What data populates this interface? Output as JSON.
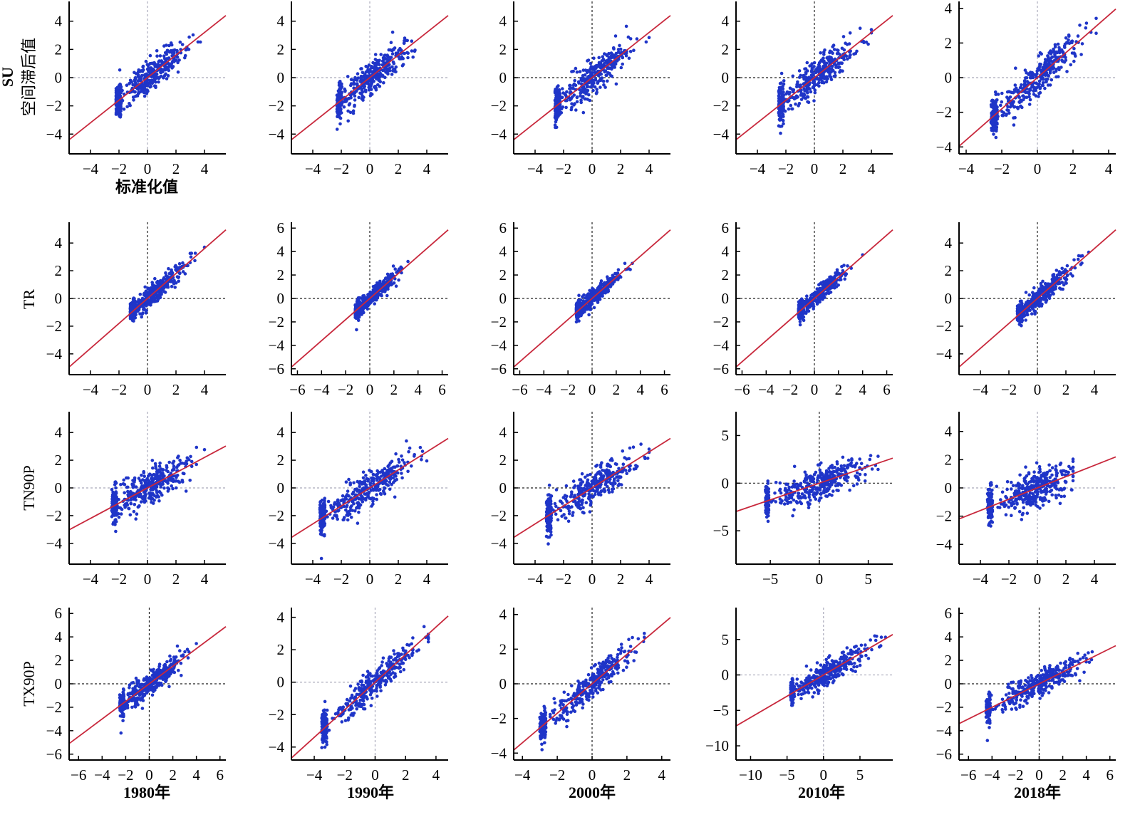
{
  "chart_data": {
    "type": "scatter",
    "title": "",
    "point_color": "#1f35c8",
    "line_color": "#c8283c",
    "row_labels": [
      "SU",
      "TR",
      "TN90P",
      "TX90P"
    ],
    "ylabel_extra": "空间滞后值",
    "xlabel_first": "标准化值",
    "years": [
      "1980年",
      "1990年",
      "2000年",
      "2010年",
      "2018年"
    ],
    "panels": [
      {
        "row": 0,
        "col": 0,
        "xlim": [
          -5.5,
          5.5
        ],
        "ylim": [
          -5.4,
          5.4
        ],
        "xticks": [
          -4,
          -2,
          0,
          2,
          4
        ],
        "yticks": [
          -4,
          -2,
          0,
          2,
          4
        ],
        "slope": 0.8,
        "xmin": -2.2,
        "xmax": 4,
        "spread": 0.55,
        "refline": "gray"
      },
      {
        "row": 0,
        "col": 1,
        "xlim": [
          -5.5,
          5.5
        ],
        "ylim": [
          -5.4,
          5.4
        ],
        "xticks": [
          -4,
          -2,
          0,
          2,
          4
        ],
        "yticks": [
          -4,
          -2,
          0,
          2,
          4
        ],
        "slope": 0.8,
        "xmin": -2.3,
        "xmax": 4,
        "spread": 0.55,
        "refline": "gray"
      },
      {
        "row": 0,
        "col": 2,
        "xlim": [
          -5.5,
          5.5
        ],
        "ylim": [
          -5.4,
          5.4
        ],
        "xticks": [
          -4,
          -2,
          0,
          2,
          4
        ],
        "yticks": [
          -4,
          -2,
          0,
          2,
          4
        ],
        "slope": 0.8,
        "xmin": -2.6,
        "xmax": 4,
        "spread": 0.6,
        "refline": "black"
      },
      {
        "row": 0,
        "col": 3,
        "xlim": [
          -5.5,
          5.5
        ],
        "ylim": [
          -5.4,
          5.4
        ],
        "xticks": [
          -4,
          -2,
          0,
          2,
          4
        ],
        "yticks": [
          -4,
          -2,
          0,
          2,
          4
        ],
        "slope": 0.8,
        "xmin": -2.5,
        "xmax": 4,
        "spread": 0.6,
        "refline": "black"
      },
      {
        "row": 0,
        "col": 4,
        "xlim": [
          -4.4,
          4.4
        ],
        "ylim": [
          -4.4,
          4.4
        ],
        "xticks": [
          -4,
          -2,
          0,
          2,
          4
        ],
        "yticks": [
          -4,
          -2,
          0,
          2,
          4
        ],
        "slope": 0.9,
        "xmin": -2.6,
        "xmax": 3.3,
        "spread": 0.5,
        "refline": "gray"
      },
      {
        "row": 1,
        "col": 0,
        "xlim": [
          -5.5,
          5.5
        ],
        "ylim": [
          -5.5,
          5.5
        ],
        "xticks": [
          -4,
          -2,
          0,
          2,
          4
        ],
        "yticks": [
          -4,
          -2,
          0,
          2,
          4
        ],
        "slope": 0.9,
        "xmin": -1.2,
        "xmax": 4,
        "spread": 0.35,
        "refline": "black"
      },
      {
        "row": 1,
        "col": 1,
        "xlim": [
          -6.5,
          6.5
        ],
        "ylim": [
          -6.5,
          6.5
        ],
        "xticks": [
          -6,
          -4,
          -2,
          0,
          2,
          4,
          6
        ],
        "yticks": [
          -6,
          -4,
          -2,
          0,
          2,
          4,
          6
        ],
        "slope": 0.9,
        "xmin": -1.2,
        "xmax": 3.6,
        "spread": 0.35,
        "refline": "black"
      },
      {
        "row": 1,
        "col": 2,
        "xlim": [
          -6.5,
          6.5
        ],
        "ylim": [
          -6.5,
          6.5
        ],
        "xticks": [
          -6,
          -4,
          -2,
          0,
          2,
          4,
          6
        ],
        "yticks": [
          -6,
          -4,
          -2,
          0,
          2,
          4,
          6
        ],
        "slope": 0.9,
        "xmin": -1.3,
        "xmax": 3.8,
        "spread": 0.35,
        "refline": "black"
      },
      {
        "row": 1,
        "col": 3,
        "xlim": [
          -6.5,
          6.5
        ],
        "ylim": [
          -6.5,
          6.5
        ],
        "xticks": [
          -6,
          -4,
          -2,
          0,
          2,
          4,
          6
        ],
        "yticks": [
          -6,
          -4,
          -2,
          0,
          2,
          4,
          6
        ],
        "slope": 0.9,
        "xmin": -1.3,
        "xmax": 4,
        "spread": 0.35,
        "refline": "black"
      },
      {
        "row": 1,
        "col": 4,
        "xlim": [
          -5.5,
          5.5
        ],
        "ylim": [
          -5.5,
          5.5
        ],
        "xticks": [
          -4,
          -2,
          0,
          2,
          4
        ],
        "yticks": [
          -4,
          -2,
          0,
          2,
          4
        ],
        "slope": 0.9,
        "xmin": -1.4,
        "xmax": 3.6,
        "spread": 0.35,
        "refline": "black"
      },
      {
        "row": 2,
        "col": 0,
        "xlim": [
          -5.5,
          5.5
        ],
        "ylim": [
          -5.5,
          5.5
        ],
        "xticks": [
          -4,
          -2,
          0,
          2,
          4
        ],
        "yticks": [
          -4,
          -2,
          0,
          2,
          4
        ],
        "slope": 0.55,
        "xmin": -2.5,
        "xmax": 4,
        "spread": 0.65,
        "refline": "gray"
      },
      {
        "row": 2,
        "col": 1,
        "xlim": [
          -5.5,
          5.5
        ],
        "ylim": [
          -5.5,
          5.5
        ],
        "xticks": [
          -4,
          -2,
          0,
          2,
          4
        ],
        "yticks": [
          -4,
          -2,
          0,
          2,
          4
        ],
        "slope": 0.65,
        "xmin": -3.5,
        "xmax": 4,
        "spread": 0.6,
        "refline": "gray"
      },
      {
        "row": 2,
        "col": 2,
        "xlim": [
          -5.5,
          5.5
        ],
        "ylim": [
          -5.5,
          5.5
        ],
        "xticks": [
          -4,
          -2,
          0,
          2,
          4
        ],
        "yticks": [
          -4,
          -2,
          0,
          2,
          4
        ],
        "slope": 0.65,
        "xmin": -3.2,
        "xmax": 4,
        "spread": 0.6,
        "refline": "black"
      },
      {
        "row": 2,
        "col": 3,
        "xlim": [
          -8.5,
          7.5
        ],
        "ylim": [
          -8.5,
          7.5
        ],
        "xticks": [
          -5,
          0,
          5
        ],
        "yticks": [
          -5,
          0,
          5
        ],
        "slope": 0.35,
        "xmin": -5.5,
        "xmax": 6,
        "spread": 0.8,
        "refline": "black"
      },
      {
        "row": 2,
        "col": 4,
        "xlim": [
          -5.5,
          5.5
        ],
        "ylim": [
          -5.4,
          5.4
        ],
        "xticks": [
          -4,
          -2,
          0,
          2,
          4
        ],
        "yticks": [
          -4,
          -2,
          0,
          2,
          4
        ],
        "slope": 0.4,
        "xmin": -3.5,
        "xmax": 2.5,
        "spread": 0.65,
        "refline": "gray"
      },
      {
        "row": 3,
        "col": 0,
        "xlim": [
          -6.8,
          6.5
        ],
        "ylim": [
          -6.5,
          6.5
        ],
        "xticks": [
          -6,
          -4,
          -2,
          0,
          2,
          4,
          6
        ],
        "yticks": [
          -6,
          -4,
          -2,
          0,
          2,
          4,
          6
        ],
        "slope": 0.75,
        "xmin": -2.5,
        "xmax": 4,
        "spread": 0.5,
        "refline": "black"
      },
      {
        "row": 3,
        "col": 1,
        "xlim": [
          -5.5,
          4.8
        ],
        "ylim": [
          -4.8,
          4.6
        ],
        "xticks": [
          -4,
          -2,
          0,
          2,
          4
        ],
        "yticks": [
          -4,
          -2,
          0,
          2,
          4
        ],
        "slope": 0.85,
        "xmin": -3.5,
        "xmax": 3.5,
        "spread": 0.45,
        "refline": "gray"
      },
      {
        "row": 3,
        "col": 2,
        "xlim": [
          -4.5,
          4.5
        ],
        "ylim": [
          -4.4,
          4.4
        ],
        "xticks": [
          -4,
          -2,
          0,
          2,
          4
        ],
        "yticks": [
          -4,
          -2,
          0,
          2,
          4
        ],
        "slope": 0.85,
        "xmin": -3,
        "xmax": 3,
        "spread": 0.4,
        "refline": "black"
      },
      {
        "row": 3,
        "col": 3,
        "xlim": [
          -12,
          9.5
        ],
        "ylim": [
          -12,
          9.5
        ],
        "xticks": [
          -10,
          -5,
          0,
          5
        ],
        "yticks": [
          -10,
          -5,
          0,
          5
        ],
        "slope": 0.6,
        "xmin": -4.5,
        "xmax": 8.5,
        "spread": 0.8,
        "refline": "gray"
      },
      {
        "row": 3,
        "col": 4,
        "xlim": [
          -6.8,
          6.5
        ],
        "ylim": [
          -6.5,
          6.5
        ],
        "xticks": [
          -6,
          -4,
          -2,
          0,
          2,
          4,
          6
        ],
        "yticks": [
          -6,
          -4,
          -2,
          0,
          2,
          4,
          6
        ],
        "slope": 0.5,
        "xmin": -4.5,
        "xmax": 4.5,
        "spread": 0.55,
        "refline": "black"
      }
    ]
  }
}
